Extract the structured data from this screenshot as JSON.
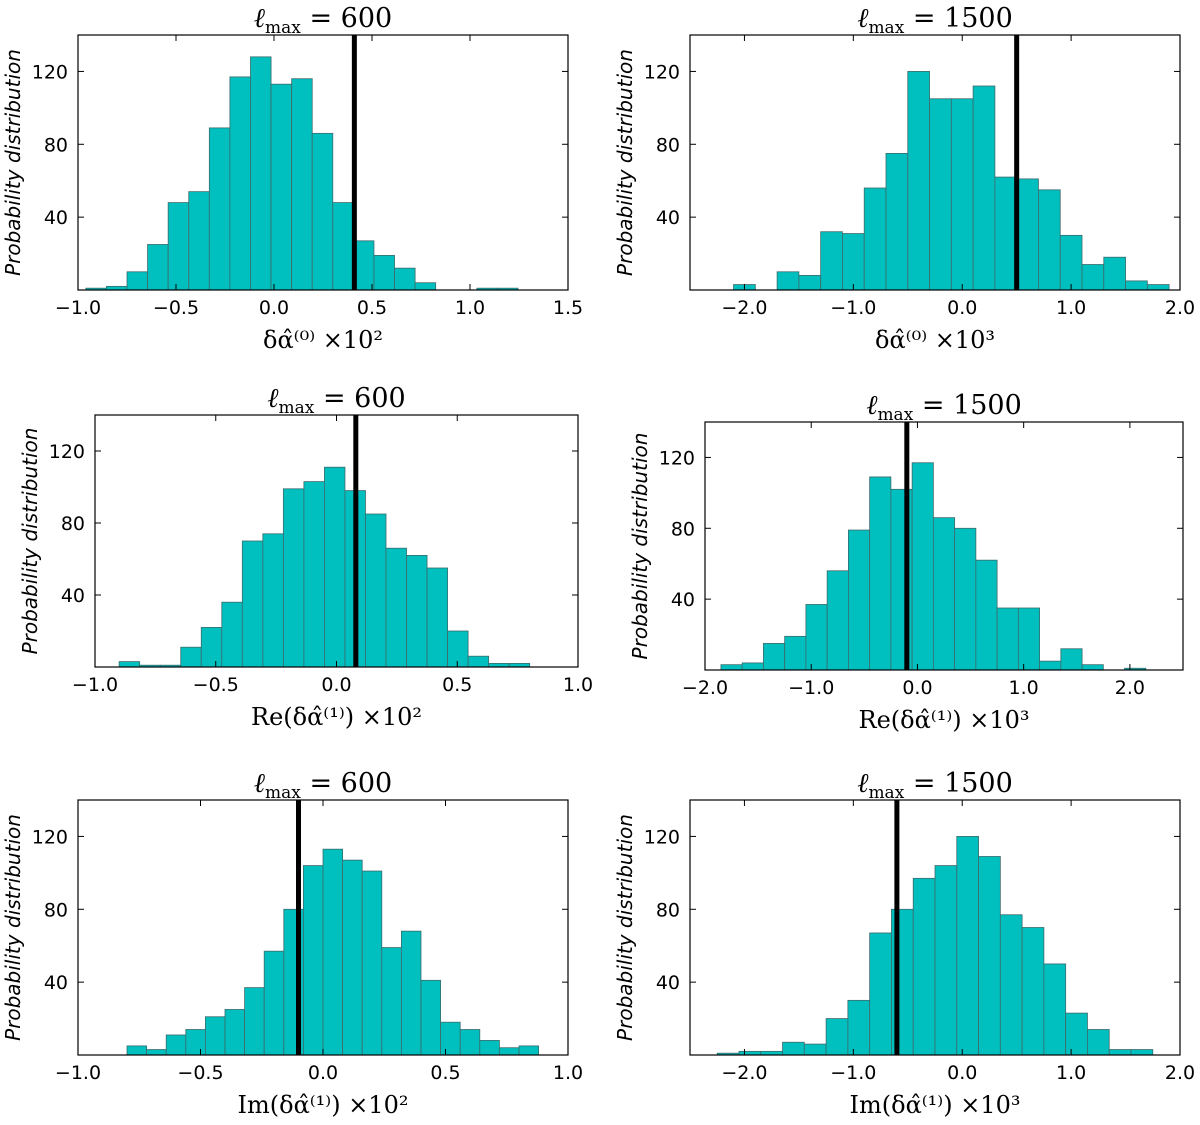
{
  "chart_data": [
    {
      "type": "bar",
      "title_prefix": "ℓ",
      "title_sub": "max",
      "title_eq": " = ",
      "title_value": "600",
      "ylabel": "Probability distribution",
      "xlabel": "δα̂⁽⁰⁾ ×10²",
      "xlim": [
        -1.0,
        1.5
      ],
      "ylim": [
        0,
        140
      ],
      "xticks": [
        "-1.0",
        "-0.5",
        "0.0",
        "0.5",
        "1.0",
        "1.5"
      ],
      "xtick_values": [
        -1.0,
        -0.5,
        0.0,
        0.5,
        1.0,
        1.5
      ],
      "yticks": [
        "40",
        "80",
        "120"
      ],
      "ytick_values": [
        40,
        80,
        120
      ],
      "bin_start": -0.96,
      "bin_width": 0.105,
      "values": [
        1,
        2,
        10,
        25,
        48,
        54,
        89,
        117,
        128,
        113,
        116,
        86,
        48,
        27,
        19,
        12,
        4,
        0,
        0,
        1,
        1
      ],
      "ref_line": 0.41,
      "bar_color": "#00bfbf"
    },
    {
      "type": "bar",
      "title_prefix": "ℓ",
      "title_sub": "max",
      "title_eq": " = ",
      "title_value": "1500",
      "ylabel": "Probability distribution",
      "xlabel": "δα̂⁽⁰⁾ ×10³",
      "xlim": [
        -2.5,
        2.0
      ],
      "ylim": [
        0,
        140
      ],
      "xticks": [
        "-2.0",
        "-1.0",
        "0.0",
        "1.0",
        "2.0"
      ],
      "xtick_values": [
        -2.0,
        -1.0,
        0.0,
        1.0,
        2.0
      ],
      "yticks": [
        "40",
        "80",
        "120"
      ],
      "ytick_values": [
        40,
        80,
        120
      ],
      "bin_start": -2.1,
      "bin_width": 0.2,
      "values": [
        3,
        0,
        10,
        8,
        32,
        31,
        56,
        75,
        120,
        105,
        105,
        112,
        62,
        61,
        55,
        30,
        14,
        18,
        5,
        3
      ],
      "ref_line": 0.5,
      "bar_color": "#00bfbf"
    },
    {
      "type": "bar",
      "title_prefix": "ℓ",
      "title_sub": "max",
      "title_eq": " = ",
      "title_value": "600",
      "ylabel": "Probability distribution",
      "xlabel": "Re(δα̂⁽¹⁾) ×10²",
      "xlim": [
        -1.0,
        1.0
      ],
      "ylim": [
        0,
        140
      ],
      "xticks": [
        "-1.0",
        "-0.5",
        "0.0",
        "0.5",
        "1.0"
      ],
      "xtick_values": [
        -1.0,
        -0.5,
        0.0,
        0.5,
        1.0
      ],
      "yticks": [
        "40",
        "80",
        "120"
      ],
      "ytick_values": [
        40,
        80,
        120
      ],
      "bin_start": -0.9,
      "bin_width": 0.085,
      "values": [
        3,
        1,
        1,
        11,
        22,
        36,
        70,
        74,
        99,
        103,
        111,
        98,
        85,
        66,
        62,
        55,
        20,
        6,
        2,
        2
      ],
      "ref_line": 0.08,
      "bar_color": "#00bfbf"
    },
    {
      "type": "bar",
      "title_prefix": "ℓ",
      "title_sub": "max",
      "title_eq": " = ",
      "title_value": "1500",
      "ylabel": "Probability distribution",
      "xlabel": "Re(δα̂⁽¹⁾) ×10³",
      "xlim": [
        -2.0,
        2.5
      ],
      "ylim": [
        0,
        140
      ],
      "xticks": [
        "-2.0",
        "-1.0",
        "0.0",
        "1.0",
        "2.0"
      ],
      "xtick_values": [
        -2.0,
        -1.0,
        0.0,
        1.0,
        2.0
      ],
      "yticks": [
        "40",
        "80",
        "120"
      ],
      "ytick_values": [
        40,
        80,
        120
      ],
      "bin_start": -1.85,
      "bin_width": 0.2,
      "values": [
        3,
        4,
        15,
        19,
        37,
        56,
        79,
        109,
        102,
        117,
        86,
        80,
        62,
        35,
        35,
        5,
        12,
        3,
        0,
        1
      ],
      "ref_line": -0.1,
      "bar_color": "#00bfbf"
    },
    {
      "type": "bar",
      "title_prefix": "ℓ",
      "title_sub": "max",
      "title_eq": " = ",
      "title_value": "600",
      "ylabel": "Probability distribution",
      "xlabel": "Im(δα̂⁽¹⁾) ×10²",
      "xlim": [
        -1.0,
        1.0
      ],
      "ylim": [
        0,
        140
      ],
      "xticks": [
        "-1.0",
        "-0.5",
        "0.0",
        "0.5",
        "1.0"
      ],
      "xtick_values": [
        -1.0,
        -0.5,
        0.0,
        0.5,
        1.0
      ],
      "yticks": [
        "40",
        "80",
        "120"
      ],
      "ytick_values": [
        40,
        80,
        120
      ],
      "bin_start": -0.8,
      "bin_width": 0.08,
      "values": [
        5,
        3,
        11,
        14,
        21,
        25,
        37,
        57,
        80,
        104,
        113,
        107,
        101,
        59,
        68,
        41,
        18,
        14,
        8,
        4,
        5
      ],
      "ref_line": -0.1,
      "bar_color": "#00bfbf"
    },
    {
      "type": "bar",
      "title_prefix": "ℓ",
      "title_sub": "max",
      "title_eq": " = ",
      "title_value": "1500",
      "ylabel": "Probability distribution",
      "xlabel": "Im(δα̂⁽¹⁾) ×10³",
      "xlim": [
        -2.5,
        2.0
      ],
      "ylim": [
        0,
        140
      ],
      "xticks": [
        "-2.0",
        "-1.0",
        "0.0",
        "1.0",
        "2.0"
      ],
      "xtick_values": [
        -2.0,
        -1.0,
        0.0,
        1.0,
        2.0
      ],
      "yticks": [
        "40",
        "80",
        "120"
      ],
      "ytick_values": [
        40,
        80,
        120
      ],
      "bin_start": -2.25,
      "bin_width": 0.2,
      "values": [
        1,
        2,
        2,
        7,
        6,
        20,
        30,
        67,
        80,
        97,
        104,
        120,
        109,
        77,
        70,
        50,
        23,
        14,
        3,
        3
      ],
      "ref_line": -0.6,
      "bar_color": "#00bfbf"
    }
  ]
}
